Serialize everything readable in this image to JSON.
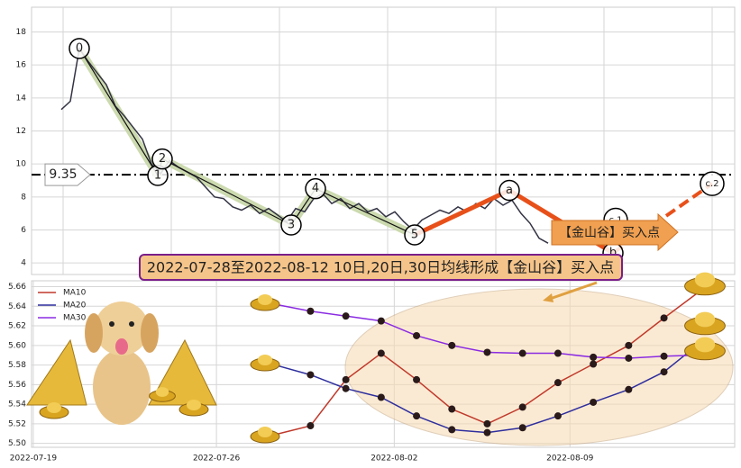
{
  "chart_data": [
    {
      "type": "line",
      "xlim": [
        -3.3,
        74.7
      ],
      "xticks": [
        0.2,
        12.2,
        24.2,
        36.2,
        48.2,
        60.2,
        72.2
      ],
      "ylim": [
        3.3,
        19.5
      ],
      "yticks": [
        4,
        6,
        8,
        10,
        12,
        14,
        16,
        18
      ],
      "grid": true,
      "x": [
        0,
        1,
        2,
        3,
        4,
        5,
        6,
        7,
        8,
        9,
        10,
        11,
        12,
        13,
        14,
        15,
        16,
        17,
        18,
        19,
        20,
        21,
        22,
        23,
        24,
        25,
        26,
        27,
        28,
        29,
        30,
        31,
        32,
        33,
        34,
        35,
        36,
        37,
        38,
        39,
        40,
        41,
        42,
        43,
        44,
        45,
        46,
        47,
        48,
        49,
        50,
        51,
        52,
        53,
        54
      ],
      "series": [
        {
          "color": "#333344",
          "values": [
            13.3,
            13.8,
            17.0,
            16.2,
            15.5,
            14.8,
            13.5,
            12.9,
            12.2,
            11.5,
            10.0,
            9.4,
            10.2,
            9.8,
            9.5,
            9.2,
            8.6,
            8.0,
            7.9,
            7.4,
            7.2,
            7.5,
            7.0,
            7.3,
            6.9,
            6.5,
            7.3,
            7.1,
            7.9,
            8.2,
            7.6,
            7.9,
            7.3,
            7.6,
            7.1,
            7.3,
            6.8,
            7.1,
            6.5,
            6.0,
            6.6,
            6.9,
            7.2,
            7.0,
            7.4,
            7.1,
            7.6,
            7.3,
            7.9,
            7.5,
            7.8,
            7.0,
            6.4,
            5.5,
            5.2
          ]
        }
      ],
      "waves": [
        {
          "label": "0",
          "x": 2,
          "y": 17.0
        },
        {
          "label": "1",
          "x": 10.7,
          "y": 9.3
        },
        {
          "label": "2",
          "x": 11.2,
          "y": 10.3
        },
        {
          "label": "3",
          "x": 25.5,
          "y": 6.3
        },
        {
          "label": "4",
          "x": 28.2,
          "y": 8.5
        },
        {
          "label": "5",
          "x": 39.2,
          "y": 5.7
        },
        {
          "label": "a",
          "x": 49.7,
          "y": 8.4
        },
        {
          "label": "b",
          "x": 61.2,
          "y": 4.6
        },
        {
          "label": "c.1",
          "x": 61.5,
          "y": 6.6
        },
        {
          "label": "c.2",
          "x": 72.2,
          "y": 8.8
        }
      ],
      "hline": 9.35,
      "callout": "【金山谷】买入点",
      "banner": "2022-07-28至2022-08-12 10日,20日,30日均线形成【金山谷】买入点"
    },
    {
      "type": "line",
      "xlim": [
        -6.89,
        13.0
      ],
      "xticks": [
        {
          "value": -6.84,
          "label": "2022-07-19"
        },
        {
          "value": -1.66,
          "label": "2022-07-26"
        },
        {
          "value": 3.37,
          "label": "2022-08-02"
        },
        {
          "value": 8.34,
          "label": "2022-08-09"
        }
      ],
      "ylim": [
        5.496,
        5.666
      ],
      "yticks": [
        {
          "value": 5.5,
          "label": "5.50"
        },
        {
          "value": 5.52,
          "label": "5.52"
        },
        {
          "value": 5.54,
          "label": "5.54"
        },
        {
          "value": 5.56,
          "label": "5.56"
        },
        {
          "value": 5.58,
          "label": "5.58"
        },
        {
          "value": 5.6,
          "label": "5.60"
        },
        {
          "value": 5.62,
          "label": "5.62"
        },
        {
          "value": 5.64,
          "label": "5.64"
        },
        {
          "value": 5.66,
          "label": "5.66"
        }
      ],
      "grid": true,
      "x": [
        0,
        1,
        2,
        3,
        4,
        5,
        6,
        7,
        8,
        9,
        10,
        11,
        12
      ],
      "series": [
        {
          "name": "MA10",
          "color": "#c0392b",
          "values": [
            5.509,
            5.518,
            5.565,
            5.592,
            5.565,
            5.535,
            5.52,
            5.537,
            5.562,
            5.581,
            5.6,
            5.628,
            5.655
          ]
        },
        {
          "name": "MA20",
          "color": "#2e2e9e",
          "values": [
            5.58,
            5.57,
            5.556,
            5.547,
            5.528,
            5.514,
            5.511,
            5.516,
            5.528,
            5.542,
            5.555,
            5.573,
            5.602
          ]
        },
        {
          "name": "MA30",
          "color": "#8a2be2",
          "values": [
            5.642,
            5.635,
            5.63,
            5.625,
            5.61,
            5.6,
            5.593,
            5.592,
            5.592,
            5.588,
            5.587,
            5.589,
            5.59
          ]
        }
      ]
    }
  ]
}
